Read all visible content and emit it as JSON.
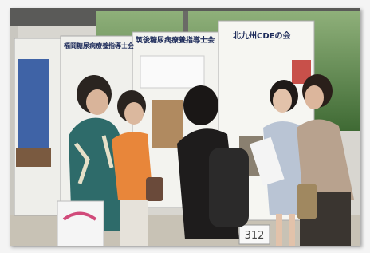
{
  "posters": [
    {
      "title": "福岡糖尿病療養指導士会"
    },
    {
      "title": "筑後糖尿病療養指導士会"
    },
    {
      "title": "北九州CDEの会"
    }
  ],
  "booth_number": "312"
}
